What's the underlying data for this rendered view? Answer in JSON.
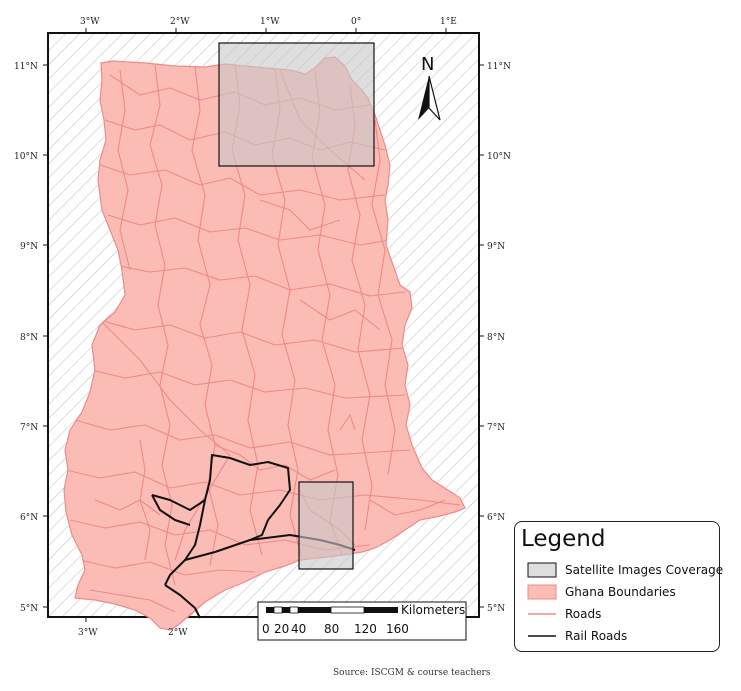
{
  "map": {
    "north_label": "N",
    "scale_bar": {
      "unit": "Kilometers",
      "labels": [
        "0",
        "20",
        "40",
        "80",
        "120",
        "160"
      ]
    },
    "longitude_labels": [
      "3°W",
      "2°W",
      "1°W",
      "0°",
      "1°E"
    ],
    "latitude_labels": [
      "11°N",
      "10°N",
      "9°N",
      "8°N",
      "7°N",
      "6°N",
      "5°N"
    ],
    "colors": {
      "country_fill": "#fbbcb6",
      "roads": "#ee8a86",
      "rail": "#111111",
      "coverage_fill": "#c8c8c8",
      "hatch": "#bbbbbb"
    }
  },
  "legend": {
    "title": "Legend",
    "items": [
      {
        "label": "Satellite Images Coverage",
        "symbol": "gray-box"
      },
      {
        "label": "Ghana Boundaries",
        "symbol": "pink-box"
      },
      {
        "label": "Roads",
        "symbol": "pink-line"
      },
      {
        "label": "Rail Roads",
        "symbol": "black-line"
      }
    ]
  },
  "source": "Source: ISCGM & course teachers"
}
